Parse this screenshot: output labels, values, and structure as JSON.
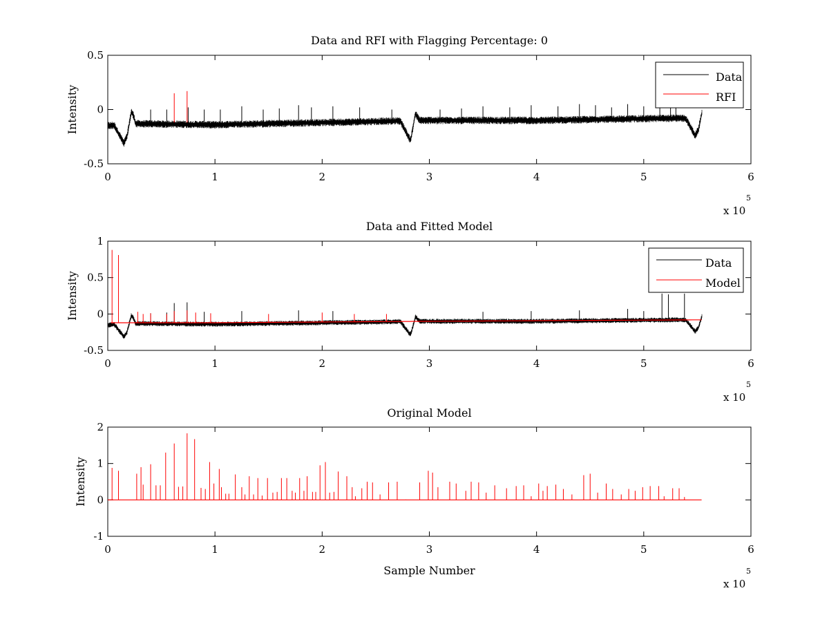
{
  "figure": {
    "colors": {
      "data": "#000000",
      "model": "#ff0000",
      "axes": "#000000",
      "background": "#ffffff"
    }
  },
  "chart_data": [
    {
      "type": "line",
      "title": "Data and RFI with Flagging Percentage: 0",
      "xlabel": "",
      "ylabel": "Intensity",
      "xlim": [
        0,
        600000
      ],
      "ylim": [
        -0.5,
        0.5
      ],
      "xticks": [
        "0",
        "1",
        "2",
        "3",
        "4",
        "5",
        "6"
      ],
      "yticks": [
        "-0.5",
        "0",
        "0.5"
      ],
      "x_exponent": {
        "base": "x 10",
        "power": "5"
      },
      "legend": {
        "placement": "top-right",
        "entries": [
          "Data",
          "RFI"
        ]
      },
      "series": [
        {
          "name": "Data",
          "kind": "noisy_baseline",
          "color": "#000000",
          "x_range": [
            0,
            554000
          ],
          "baseline": [
            [
              0,
              -0.15
            ],
            [
              20000,
              -0.13
            ],
            [
              100000,
              -0.14
            ],
            [
              250000,
              -0.11
            ],
            [
              290000,
              -0.1
            ],
            [
              400000,
              -0.1
            ],
            [
              530000,
              -0.08
            ],
            [
              554000,
              -0.08
            ]
          ],
          "dips": [
            [
              15000,
              -0.31
            ],
            [
              282000,
              -0.28
            ],
            [
              548000,
              -0.24
            ]
          ],
          "bumps": [
            [
              22000,
              0.02
            ],
            [
              287000,
              0.04
            ],
            [
              555000,
              0.04
            ]
          ],
          "spikes": [
            [
              40000,
              0.0
            ],
            [
              55000,
              0.0
            ],
            [
              75000,
              0.02
            ],
            [
              90000,
              0.0
            ],
            [
              105000,
              0.0
            ],
            [
              125000,
              0.03
            ],
            [
              145000,
              0.0
            ],
            [
              160000,
              0.01
            ],
            [
              178000,
              0.04
            ],
            [
              190000,
              0.02
            ],
            [
              210000,
              0.03
            ],
            [
              235000,
              0.02
            ],
            [
              265000,
              0.0
            ],
            [
              310000,
              0.0
            ],
            [
              330000,
              0.01
            ],
            [
              350000,
              0.03
            ],
            [
              375000,
              0.02
            ],
            [
              395000,
              0.04
            ],
            [
              420000,
              0.03
            ],
            [
              440000,
              0.05
            ],
            [
              455000,
              0.04
            ],
            [
              470000,
              0.02
            ],
            [
              485000,
              0.05
            ],
            [
              500000,
              0.03
            ],
            [
              515000,
              0.04
            ],
            [
              525000,
              0.07
            ],
            [
              530000,
              0.06
            ]
          ]
        },
        {
          "name": "RFI",
          "kind": "spikes",
          "color": "#ff0000",
          "points": [
            [
              62000,
              0.15
            ],
            [
              74000,
              0.17
            ]
          ]
        }
      ]
    },
    {
      "type": "line",
      "title": "Data and Fitted Model",
      "xlabel": "",
      "ylabel": "Intensity",
      "xlim": [
        0,
        600000
      ],
      "ylim": [
        -0.5,
        1
      ],
      "xticks": [
        "0",
        "1",
        "2",
        "3",
        "4",
        "5",
        "6"
      ],
      "yticks": [
        "-0.5",
        "0",
        "0.5",
        "1"
      ],
      "x_exponent": {
        "base": "x 10",
        "power": "5"
      },
      "legend": {
        "placement": "top-right",
        "entries": [
          "Data",
          "Model"
        ]
      },
      "series": [
        {
          "name": "Data",
          "kind": "noisy_baseline",
          "color": "#000000",
          "x_range": [
            0,
            554000
          ],
          "baseline": [
            [
              0,
              -0.15
            ],
            [
              20000,
              -0.13
            ],
            [
              100000,
              -0.14
            ],
            [
              250000,
              -0.11
            ],
            [
              290000,
              -0.1
            ],
            [
              400000,
              -0.1
            ],
            [
              530000,
              -0.08
            ],
            [
              554000,
              -0.08
            ]
          ],
          "dips": [
            [
              15000,
              -0.31
            ],
            [
              282000,
              -0.28
            ],
            [
              548000,
              -0.24
            ]
          ],
          "bumps": [
            [
              22000,
              0.02
            ],
            [
              287000,
              0.04
            ],
            [
              555000,
              0.04
            ]
          ],
          "spikes": [
            [
              40000,
              0.01
            ],
            [
              55000,
              0.02
            ],
            [
              62000,
              0.15
            ],
            [
              74000,
              0.16
            ],
            [
              90000,
              0.03
            ],
            [
              125000,
              0.04
            ],
            [
              178000,
              0.05
            ],
            [
              210000,
              0.04
            ],
            [
              350000,
              0.03
            ],
            [
              395000,
              0.04
            ],
            [
              440000,
              0.05
            ],
            [
              485000,
              0.07
            ],
            [
              500000,
              0.04
            ],
            [
              517000,
              0.28
            ],
            [
              523000,
              0.27
            ],
            [
              538000,
              0.28
            ]
          ]
        },
        {
          "name": "Model",
          "kind": "baseline_with_spikes",
          "color": "#ff0000",
          "x_range": [
            3000,
            554000
          ],
          "baseline": [
            [
              3000,
              -0.12
            ],
            [
              100000,
              -0.12
            ],
            [
              300000,
              -0.1
            ],
            [
              554000,
              -0.08
            ]
          ],
          "spikes": [
            [
              4000,
              0.88
            ],
            [
              10000,
              0.81
            ],
            [
              28000,
              0.03
            ],
            [
              33000,
              0.0
            ],
            [
              40000,
              0.01
            ],
            [
              55000,
              0.0
            ],
            [
              62000,
              0.04
            ],
            [
              74000,
              0.05
            ],
            [
              82000,
              0.02
            ],
            [
              96000,
              0.01
            ],
            [
              150000,
              0.0
            ],
            [
              200000,
              0.02
            ],
            [
              230000,
              0.0
            ],
            [
              260000,
              0.0
            ]
          ]
        }
      ]
    },
    {
      "type": "line",
      "title": "Original Model",
      "xlabel": "Sample Number",
      "ylabel": "Intensity",
      "xlim": [
        0,
        600000
      ],
      "ylim": [
        -1,
        2
      ],
      "xticks": [
        "0",
        "1",
        "2",
        "3",
        "4",
        "5",
        "6"
      ],
      "yticks": [
        "-1",
        "0",
        "1",
        "2"
      ],
      "x_exponent": {
        "base": "x 10",
        "power": "5"
      },
      "series": [
        {
          "name": "",
          "kind": "baseline_with_spikes",
          "color": "#ff0000",
          "x_range": [
            0,
            554000
          ],
          "baseline": [
            [
              0,
              0.0
            ],
            [
              554000,
              0.0
            ]
          ],
          "spikes": [
            [
              4000,
              0.88
            ],
            [
              10000,
              0.8
            ],
            [
              27000,
              0.72
            ],
            [
              31000,
              0.9
            ],
            [
              33000,
              0.42
            ],
            [
              40000,
              0.98
            ],
            [
              45000,
              0.4
            ],
            [
              49000,
              0.4
            ],
            [
              54000,
              1.3
            ],
            [
              62000,
              1.55
            ],
            [
              66000,
              0.36
            ],
            [
              70000,
              0.37
            ],
            [
              74000,
              1.83
            ],
            [
              81000,
              1.67
            ],
            [
              87000,
              0.33
            ],
            [
              91000,
              0.3
            ],
            [
              95000,
              1.04
            ],
            [
              99000,
              0.45
            ],
            [
              104000,
              0.85
            ],
            [
              106000,
              0.35
            ],
            [
              110000,
              0.17
            ],
            [
              113000,
              0.17
            ],
            [
              119000,
              0.7
            ],
            [
              125000,
              0.35
            ],
            [
              128000,
              0.15
            ],
            [
              132000,
              0.65
            ],
            [
              136000,
              0.15
            ],
            [
              140000,
              0.6
            ],
            [
              144000,
              0.12
            ],
            [
              149000,
              0.6
            ],
            [
              154000,
              0.2
            ],
            [
              158000,
              0.22
            ],
            [
              162000,
              0.6
            ],
            [
              167000,
              0.6
            ],
            [
              172000,
              0.25
            ],
            [
              175000,
              0.2
            ],
            [
              179000,
              0.6
            ],
            [
              183000,
              0.25
            ],
            [
              186000,
              0.65
            ],
            [
              191000,
              0.22
            ],
            [
              194000,
              0.22
            ],
            [
              198000,
              0.95
            ],
            [
              203000,
              1.04
            ],
            [
              207000,
              0.2
            ],
            [
              211000,
              0.22
            ],
            [
              215000,
              0.78
            ],
            [
              223000,
              0.65
            ],
            [
              228000,
              0.35
            ],
            [
              231000,
              0.1
            ],
            [
              237000,
              0.32
            ],
            [
              242000,
              0.5
            ],
            [
              247000,
              0.48
            ],
            [
              254000,
              0.15
            ],
            [
              262000,
              0.48
            ],
            [
              270000,
              0.5
            ],
            [
              278000,
              0.01
            ],
            [
              291000,
              0.48
            ],
            [
              299000,
              0.8
            ],
            [
              303000,
              0.75
            ],
            [
              308000,
              0.35
            ],
            [
              319000,
              0.5
            ],
            [
              325000,
              0.45
            ],
            [
              334000,
              0.25
            ],
            [
              339000,
              0.5
            ],
            [
              346000,
              0.48
            ],
            [
              353000,
              0.2
            ],
            [
              361000,
              0.4
            ],
            [
              372000,
              0.32
            ],
            [
              381000,
              0.38
            ],
            [
              388000,
              0.4
            ],
            [
              395000,
              0.1
            ],
            [
              402000,
              0.45
            ],
            [
              406000,
              0.25
            ],
            [
              410000,
              0.38
            ],
            [
              418000,
              0.42
            ],
            [
              425000,
              0.3
            ],
            [
              433000,
              0.15
            ],
            [
              444000,
              0.68
            ],
            [
              450000,
              0.72
            ],
            [
              457000,
              0.2
            ],
            [
              465000,
              0.45
            ],
            [
              471000,
              0.3
            ],
            [
              479000,
              0.15
            ],
            [
              486000,
              0.3
            ],
            [
              492000,
              0.25
            ],
            [
              499000,
              0.35
            ],
            [
              506000,
              0.38
            ],
            [
              514000,
              0.38
            ],
            [
              519000,
              0.1
            ],
            [
              527000,
              0.32
            ],
            [
              533000,
              0.32
            ],
            [
              538000,
              0.08
            ]
          ]
        }
      ]
    }
  ]
}
